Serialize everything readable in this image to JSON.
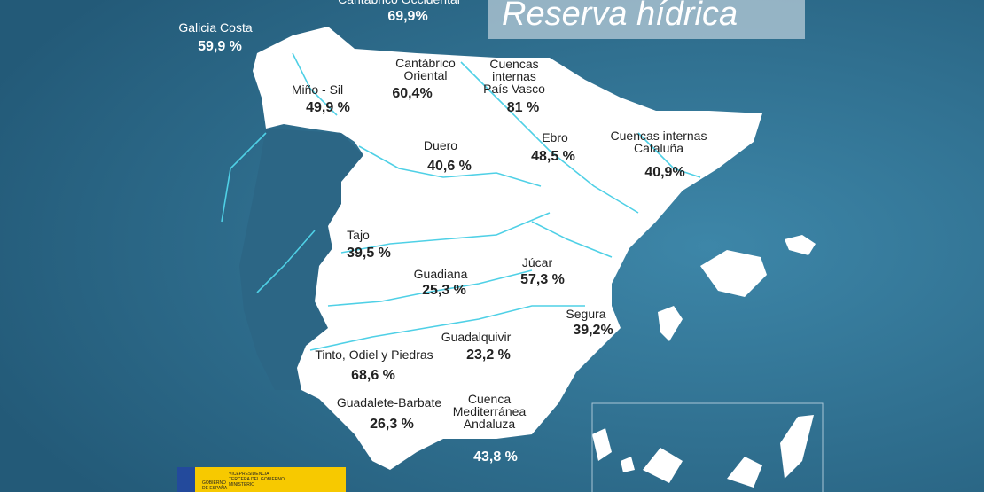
{
  "title": "Reserva hídrica",
  "regions": [
    {
      "name": [
        "Cantábrico Occidental"
      ],
      "value": "69,9%"
    },
    {
      "name": [
        "Galicia Costa"
      ],
      "value": "59,9 %"
    },
    {
      "name": [
        "Miño - Sil"
      ],
      "value": "49,9 %"
    },
    {
      "name": [
        "Cantábrico",
        "Oriental"
      ],
      "value": "60,4%"
    },
    {
      "name": [
        "Cuencas",
        "internas",
        "País Vasco"
      ],
      "value": "81 %"
    },
    {
      "name": [
        "Duero"
      ],
      "value": "40,6 %"
    },
    {
      "name": [
        "Ebro"
      ],
      "value": "48,5 %"
    },
    {
      "name": [
        "Cuencas internas",
        "Cataluña"
      ],
      "value": "40,9%"
    },
    {
      "name": [
        "Tajo"
      ],
      "value": "39,5 %"
    },
    {
      "name": [
        "Guadiana"
      ],
      "value": "25,3 %"
    },
    {
      "name": [
        "Júcar"
      ],
      "value": "57,3 %"
    },
    {
      "name": [
        "Segura"
      ],
      "value": "39,2%"
    },
    {
      "name": [
        "Guadalquivir"
      ],
      "value": "23,2 %"
    },
    {
      "name": [
        "Tinto, Odiel y Piedras"
      ],
      "value": "68,6 %"
    },
    {
      "name": [
        "Guadalete-Barbate"
      ],
      "value": "26,3 %"
    },
    {
      "name": [
        "Cuenca",
        "Mediterránea",
        "Andaluza"
      ],
      "value": "43,8 %"
    }
  ],
  "logo": {
    "line1": "VICEPRESIDENCIA",
    "line2": "TERCERA DEL GOBIERNO",
    "gov1": "GOBIERNO",
    "gov2": "DE ESPAÑA",
    "ministry": "MINISTERIO"
  }
}
